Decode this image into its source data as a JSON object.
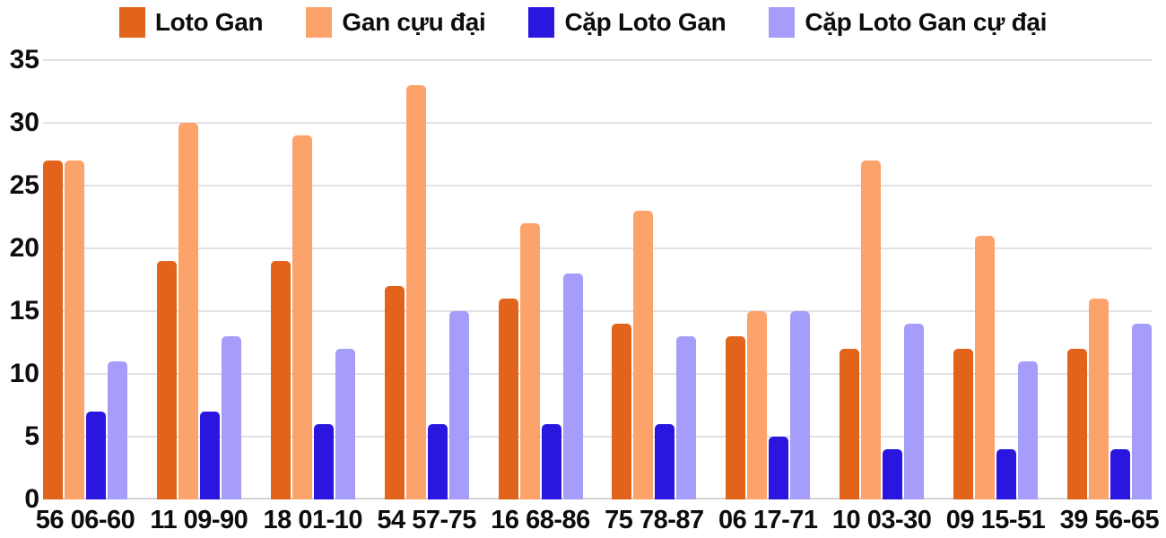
{
  "chart_data": {
    "type": "bar",
    "title": "",
    "xlabel": "",
    "ylabel": "",
    "categories": [
      "56 06-60",
      "11 09-90",
      "18 01-10",
      "54 57-75",
      "16 68-86",
      "75 78-87",
      "06 17-71",
      "10 03-30",
      "09 15-51",
      "39 56-65"
    ],
    "series": [
      {
        "name": "Loto Gan",
        "color": "#E2641A",
        "values": [
          27,
          19,
          19,
          17,
          16,
          14,
          13,
          12,
          12,
          12
        ]
      },
      {
        "name": "Gan cựu đại",
        "color": "#FCA36C",
        "values": [
          27,
          30,
          29,
          33,
          22,
          23,
          15,
          27,
          21,
          16
        ]
      },
      {
        "name": "Cặp Loto Gan",
        "color": "#2B16E0",
        "values": [
          7,
          7,
          6,
          6,
          6,
          6,
          5,
          4,
          4,
          4
        ]
      },
      {
        "name": "Cặp Loto Gan cự đại",
        "color": "#A59DF9",
        "values": [
          11,
          13,
          12,
          15,
          18,
          13,
          15,
          14,
          11,
          14
        ]
      }
    ],
    "ylim": [
      0,
      35
    ],
    "yticks": [
      0,
      5,
      10,
      15,
      20,
      25,
      30,
      35
    ],
    "grid": true,
    "legend_position": "top"
  },
  "colors": {
    "background": "#ffffff",
    "gridline": "#e2e2e2",
    "axis_line": "#d4d4d4",
    "text": "#0d0d0d"
  }
}
